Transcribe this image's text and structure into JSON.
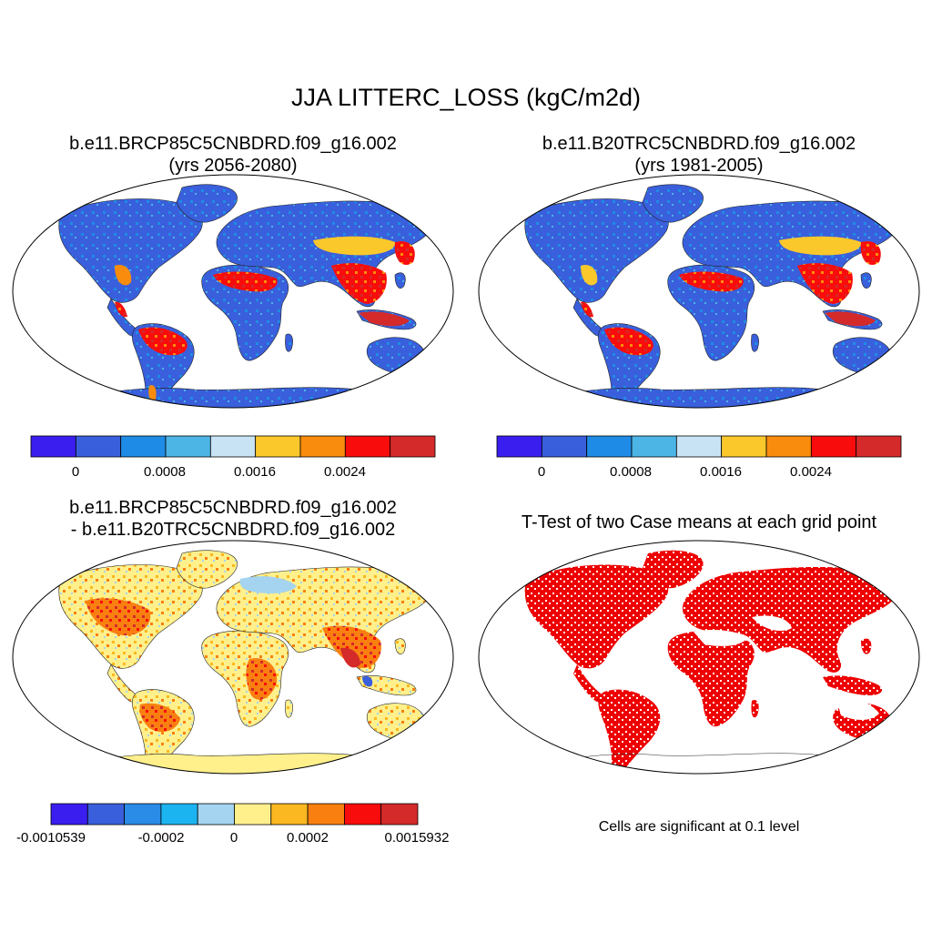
{
  "main_title": "JJA LITTERC_LOSS (kgC/m2d)",
  "panels": [
    {
      "id": "future",
      "title_line1": "b.e11.BRCP85C5CNBDRD.f09_g16.002",
      "title_line2": "(yrs 2056-2080)",
      "colorbar": {
        "colors": [
          "#3a1ef0",
          "#3a5fdc",
          "#1e8ce6",
          "#4db4e6",
          "#c8e4f4",
          "#fbc82c",
          "#f98c0c",
          "#f90c0c",
          "#d42a2a"
        ],
        "labels": [
          "0",
          "0.0008",
          "0.0016",
          "0.0024"
        ]
      }
    },
    {
      "id": "historical",
      "title_line1": "b.e11.B20TRC5CNBDRD.f09_g16.002",
      "title_line2": "(yrs 1981-2005)",
      "colorbar": {
        "colors": [
          "#3a1ef0",
          "#3a5fdc",
          "#1e8ce6",
          "#4db4e6",
          "#c8e4f4",
          "#fbc82c",
          "#f98c0c",
          "#f90c0c",
          "#d42a2a"
        ],
        "labels": [
          "0",
          "0.0008",
          "0.0016",
          "0.0024"
        ]
      }
    },
    {
      "id": "difference",
      "title_line1": "b.e11.BRCP85C5CNBDRD.f09_g16.002",
      "title_line2": "- b.e11.B20TRC5CNBDRD.f09_g16.002",
      "colorbar": {
        "colors": [
          "#3a1ef0",
          "#3a5fdc",
          "#2a8ce6",
          "#1cb4f0",
          "#a4d4f0",
          "#fff08c",
          "#fbb820",
          "#f98010",
          "#f90c0c",
          "#d42a2a"
        ],
        "labels": [
          "-0.0010539",
          "-0.0002",
          "0",
          "0.0002",
          "0.0015932"
        ]
      }
    },
    {
      "id": "ttest",
      "title_line1": "T-Test of two Case means at each grid point",
      "note": "Cells are significant at 0.1 level"
    }
  ]
}
